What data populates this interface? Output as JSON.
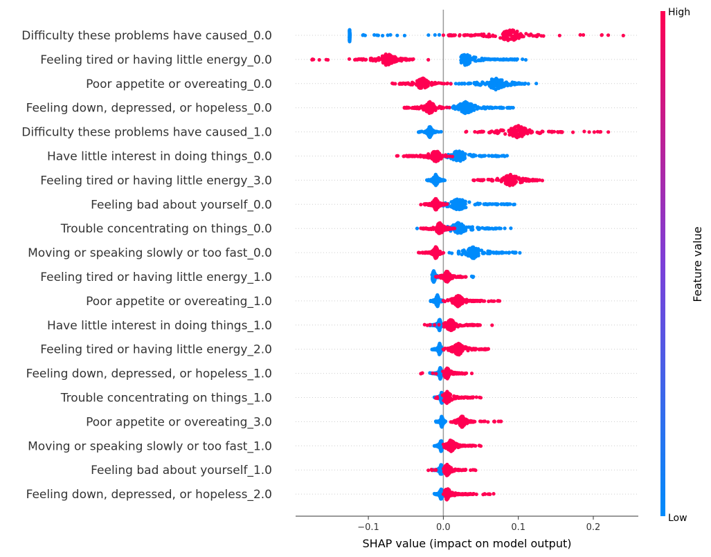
{
  "chart_data": {
    "type": "scatter",
    "subtype": "shap-beeswarm",
    "title": "",
    "xlabel": "SHAP value (impact on model output)",
    "ylabel": "",
    "xlim": [
      -0.197,
      0.26
    ],
    "xticks": [
      {
        "value": -0.1,
        "label": "−0.1"
      },
      {
        "value": 0.0,
        "label": "0.0"
      },
      {
        "value": 0.1,
        "label": "0.1"
      },
      {
        "value": 0.2,
        "label": "0.2"
      }
    ],
    "grid": false,
    "colorbar": {
      "title": "Feature value",
      "high_label": "High",
      "low_label": "Low",
      "high_color": "#ff0052",
      "low_color": "#008bfb"
    },
    "features": [
      {
        "name": "Difficulty these problems have caused_0.0",
        "high": {
          "min": 0.0,
          "max": 0.24,
          "dense": [
            0.0,
            0.13
          ],
          "peak": 0.09
        },
        "low": {
          "min": -0.125,
          "max": 0.01,
          "dense": [
            -0.125,
            -0.125
          ],
          "peak": -0.125
        }
      },
      {
        "name": "Feeling tired or having little energy_0.0",
        "high": {
          "min": -0.175,
          "max": -0.02,
          "dense": [
            -0.12,
            -0.045
          ],
          "peak": -0.075
        },
        "low": {
          "min": 0.028,
          "max": 0.11,
          "dense": [
            0.028,
            0.1
          ],
          "peak": 0.03
        }
      },
      {
        "name": "Poor appetite or overeating_0.0",
        "high": {
          "min": -0.068,
          "max": 0.01,
          "dense": [
            -0.06,
            -0.005
          ],
          "peak": -0.028
        },
        "low": {
          "min": 0.01,
          "max": 0.124,
          "dense": [
            0.02,
            0.11
          ],
          "peak": 0.07
        }
      },
      {
        "name": "Feeling down, depressed, or hopeless_0.0",
        "high": {
          "min": -0.052,
          "max": 0.008,
          "dense": [
            -0.05,
            0.0
          ],
          "peak": -0.018
        },
        "low": {
          "min": 0.005,
          "max": 0.093,
          "dense": [
            0.01,
            0.093
          ],
          "peak": 0.03
        }
      },
      {
        "name": "Difficulty these problems have caused_1.0",
        "high": {
          "min": 0.03,
          "max": 0.22,
          "dense": [
            0.045,
            0.16
          ],
          "peak": 0.1
        },
        "low": {
          "min": -0.033,
          "max": -0.003,
          "dense": [
            -0.025,
            -0.008
          ],
          "peak": -0.018
        }
      },
      {
        "name": "Have little interest in doing things_0.0",
        "high": {
          "min": -0.062,
          "max": 0.012,
          "dense": [
            -0.05,
            0.005
          ],
          "peak": -0.01
        },
        "low": {
          "min": -0.02,
          "max": 0.085,
          "dense": [
            0.0,
            0.075
          ],
          "peak": 0.02
        }
      },
      {
        "name": "Feeling tired or having little energy_3.0",
        "high": {
          "min": 0.04,
          "max": 0.132,
          "dense": [
            0.045,
            0.125
          ],
          "peak": 0.09
        },
        "low": {
          "min": -0.022,
          "max": 0.002,
          "dense": [
            -0.02,
            0.0
          ],
          "peak": -0.01
        }
      },
      {
        "name": "Feeling bad about yourself_0.0",
        "high": {
          "min": -0.03,
          "max": 0.005,
          "dense": [
            -0.025,
            0.003
          ],
          "peak": -0.01
        },
        "low": {
          "min": 0.0,
          "max": 0.095,
          "dense": [
            0.003,
            0.09
          ],
          "peak": 0.02
        }
      },
      {
        "name": "Trouble concentrating on things_0.0",
        "high": {
          "min": -0.03,
          "max": 0.015,
          "dense": [
            -0.028,
            0.01
          ],
          "peak": -0.005
        },
        "low": {
          "min": -0.035,
          "max": 0.09,
          "dense": [
            0.0,
            0.08
          ],
          "peak": 0.02
        }
      },
      {
        "name": "Moving or speaking slowly or too fast_0.0",
        "high": {
          "min": -0.033,
          "max": 0.0,
          "dense": [
            -0.025,
            -0.002
          ],
          "peak": -0.01
        },
        "low": {
          "min": 0.008,
          "max": 0.102,
          "dense": [
            0.02,
            0.1
          ],
          "peak": 0.04
        }
      },
      {
        "name": "Feeling tired or having little energy_1.0",
        "high": {
          "min": -0.01,
          "max": 0.03,
          "dense": [
            -0.005,
            0.025
          ],
          "peak": 0.005
        },
        "low": {
          "min": -0.015,
          "max": 0.04,
          "dense": [
            -0.015,
            0.0
          ],
          "peak": -0.013
        }
      },
      {
        "name": "Poor appetite or overeating_1.0",
        "high": {
          "min": 0.0,
          "max": 0.075,
          "dense": [
            0.005,
            0.05
          ],
          "peak": 0.02
        },
        "low": {
          "min": -0.017,
          "max": 0.0,
          "dense": [
            -0.015,
            0.0
          ],
          "peak": -0.008
        }
      },
      {
        "name": "Have little interest in doing things_1.0",
        "high": {
          "min": -0.025,
          "max": 0.065,
          "dense": [
            0.0,
            0.05
          ],
          "peak": 0.01
        },
        "low": {
          "min": -0.018,
          "max": 0.005,
          "dense": [
            -0.015,
            0.0
          ],
          "peak": -0.005
        }
      },
      {
        "name": "Feeling tired or having little energy_2.0",
        "high": {
          "min": 0.0,
          "max": 0.06,
          "dense": [
            0.005,
            0.06
          ],
          "peak": 0.02
        },
        "low": {
          "min": -0.015,
          "max": 0.0,
          "dense": [
            -0.012,
            0.0
          ],
          "peak": -0.005
        }
      },
      {
        "name": "Feeling down, depressed, or hopeless_1.0",
        "high": {
          "min": -0.03,
          "max": 0.038,
          "dense": [
            0.0,
            0.03
          ],
          "peak": 0.005
        },
        "low": {
          "min": -0.018,
          "max": 0.002,
          "dense": [
            -0.012,
            0.0
          ],
          "peak": -0.004
        }
      },
      {
        "name": "Trouble concentrating on things_1.0",
        "high": {
          "min": -0.01,
          "max": 0.05,
          "dense": [
            0.0,
            0.04
          ],
          "peak": 0.005
        },
        "low": {
          "min": -0.012,
          "max": 0.003,
          "dense": [
            -0.01,
            0.002
          ],
          "peak": -0.002
        }
      },
      {
        "name": "Poor appetite or overeating_3.0",
        "high": {
          "min": 0.01,
          "max": 0.077,
          "dense": [
            0.012,
            0.045
          ],
          "peak": 0.025
        },
        "low": {
          "min": -0.01,
          "max": 0.003,
          "dense": [
            -0.008,
            0.002
          ],
          "peak": -0.002
        }
      },
      {
        "name": "Moving or speaking slowly or too fast_1.0",
        "high": {
          "min": 0.0,
          "max": 0.05,
          "dense": [
            0.003,
            0.045
          ],
          "peak": 0.01
        },
        "low": {
          "min": -0.012,
          "max": 0.003,
          "dense": [
            -0.01,
            0.002
          ],
          "peak": -0.003
        }
      },
      {
        "name": "Feeling bad about yourself_1.0",
        "high": {
          "min": -0.02,
          "max": 0.043,
          "dense": [
            0.0,
            0.03
          ],
          "peak": 0.005
        },
        "low": {
          "min": -0.015,
          "max": 0.003,
          "dense": [
            -0.01,
            0.002
          ],
          "peak": -0.003
        }
      },
      {
        "name": "Feeling down, depressed, or hopeless_2.0",
        "high": {
          "min": 0.0,
          "max": 0.067,
          "dense": [
            0.002,
            0.04
          ],
          "peak": 0.005
        },
        "low": {
          "min": -0.012,
          "max": 0.003,
          "dense": [
            -0.01,
            0.002
          ],
          "peak": -0.003
        }
      }
    ]
  }
}
